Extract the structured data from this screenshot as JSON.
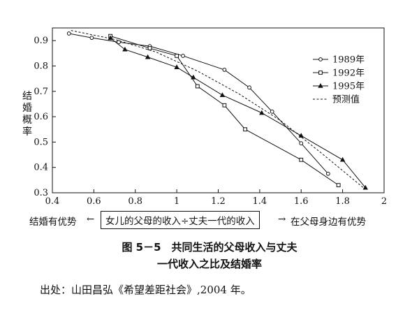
{
  "chart_data": {
    "type": "line",
    "ylabel": "结婚概率",
    "xlabel": {
      "left": "结婚有优势",
      "center": "女儿的父母的收入÷丈夫一代的收入",
      "right": "在父母身边有优势"
    },
    "xlim": [
      0.4,
      2.0
    ],
    "ylim": [
      0.3,
      0.95
    ],
    "x_ticks": [
      0.4,
      0.6,
      0.8,
      1.0,
      1.2,
      1.4,
      1.6,
      1.8,
      2.0
    ],
    "x_tick_labels": [
      "0.4",
      "0.6",
      "0.8",
      "1",
      "1.2",
      "1.4",
      "1.6",
      "1.8",
      "2"
    ],
    "y_ticks": [
      0.3,
      0.4,
      0.5,
      0.6,
      0.7,
      0.8,
      0.9
    ],
    "y_tick_labels": [
      "0.3",
      "0.4",
      "0.5",
      "0.6",
      "0.7",
      "0.8",
      "0.9"
    ],
    "legend_position": "top-right",
    "series": [
      {
        "name": "1989年",
        "marker": "circle",
        "x": [
          0.48,
          0.59,
          0.72,
          0.87,
          1.03,
          1.23,
          1.35,
          1.46,
          1.6,
          1.73
        ],
        "y": [
          0.928,
          0.911,
          0.894,
          0.878,
          0.84,
          0.785,
          0.715,
          0.62,
          0.495,
          0.375
        ]
      },
      {
        "name": "1992年",
        "marker": "square",
        "x": [
          0.68,
          0.87,
          1.0,
          1.1,
          1.23,
          1.33,
          1.6,
          1.78
        ],
        "y": [
          0.918,
          0.87,
          0.84,
          0.72,
          0.645,
          0.55,
          0.43,
          0.33
        ]
      },
      {
        "name": "1995年",
        "marker": "triangle",
        "x": [
          0.68,
          0.75,
          0.86,
          1.0,
          1.08,
          1.22,
          1.41,
          1.6,
          1.8,
          1.91
        ],
        "y": [
          0.91,
          0.865,
          0.835,
          0.795,
          0.755,
          0.685,
          0.615,
          0.525,
          0.43,
          0.32
        ]
      },
      {
        "name": "预测值",
        "marker": "none",
        "dashed": true,
        "x": [
          0.49,
          0.7,
          0.9,
          1.1,
          1.3,
          1.5,
          1.7,
          1.9
        ],
        "y": [
          0.94,
          0.905,
          0.855,
          0.78,
          0.69,
          0.585,
          0.455,
          0.32
        ]
      }
    ]
  },
  "caption": {
    "line1": "图 5－5　共同生活的父母收入与丈夫",
    "line2": "一代收入之比及结婚率"
  },
  "source": "出处：山田昌弘《希望差距社会》,2004 年。"
}
